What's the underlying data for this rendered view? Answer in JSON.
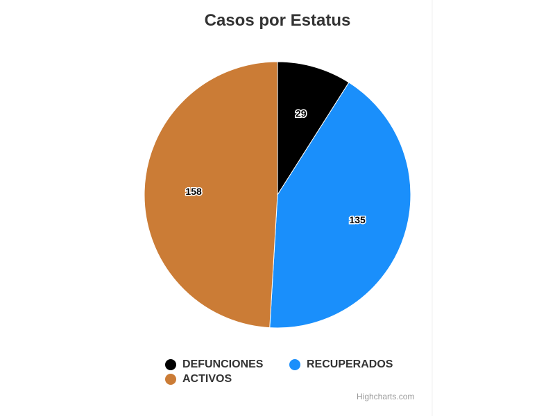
{
  "chart_data": {
    "type": "pie",
    "title": "Casos por Estatus",
    "series": [
      {
        "name": "DEFUNCIONES",
        "value": 29,
        "color": "#000000"
      },
      {
        "name": "RECUPERADOS",
        "value": 135,
        "color": "#1a8ffb"
      },
      {
        "name": "ACTIVOS",
        "value": 158,
        "color": "#cb7c36"
      }
    ],
    "legend_placement": "bottom",
    "data_labels": true
  },
  "credits": "Highcharts.com"
}
